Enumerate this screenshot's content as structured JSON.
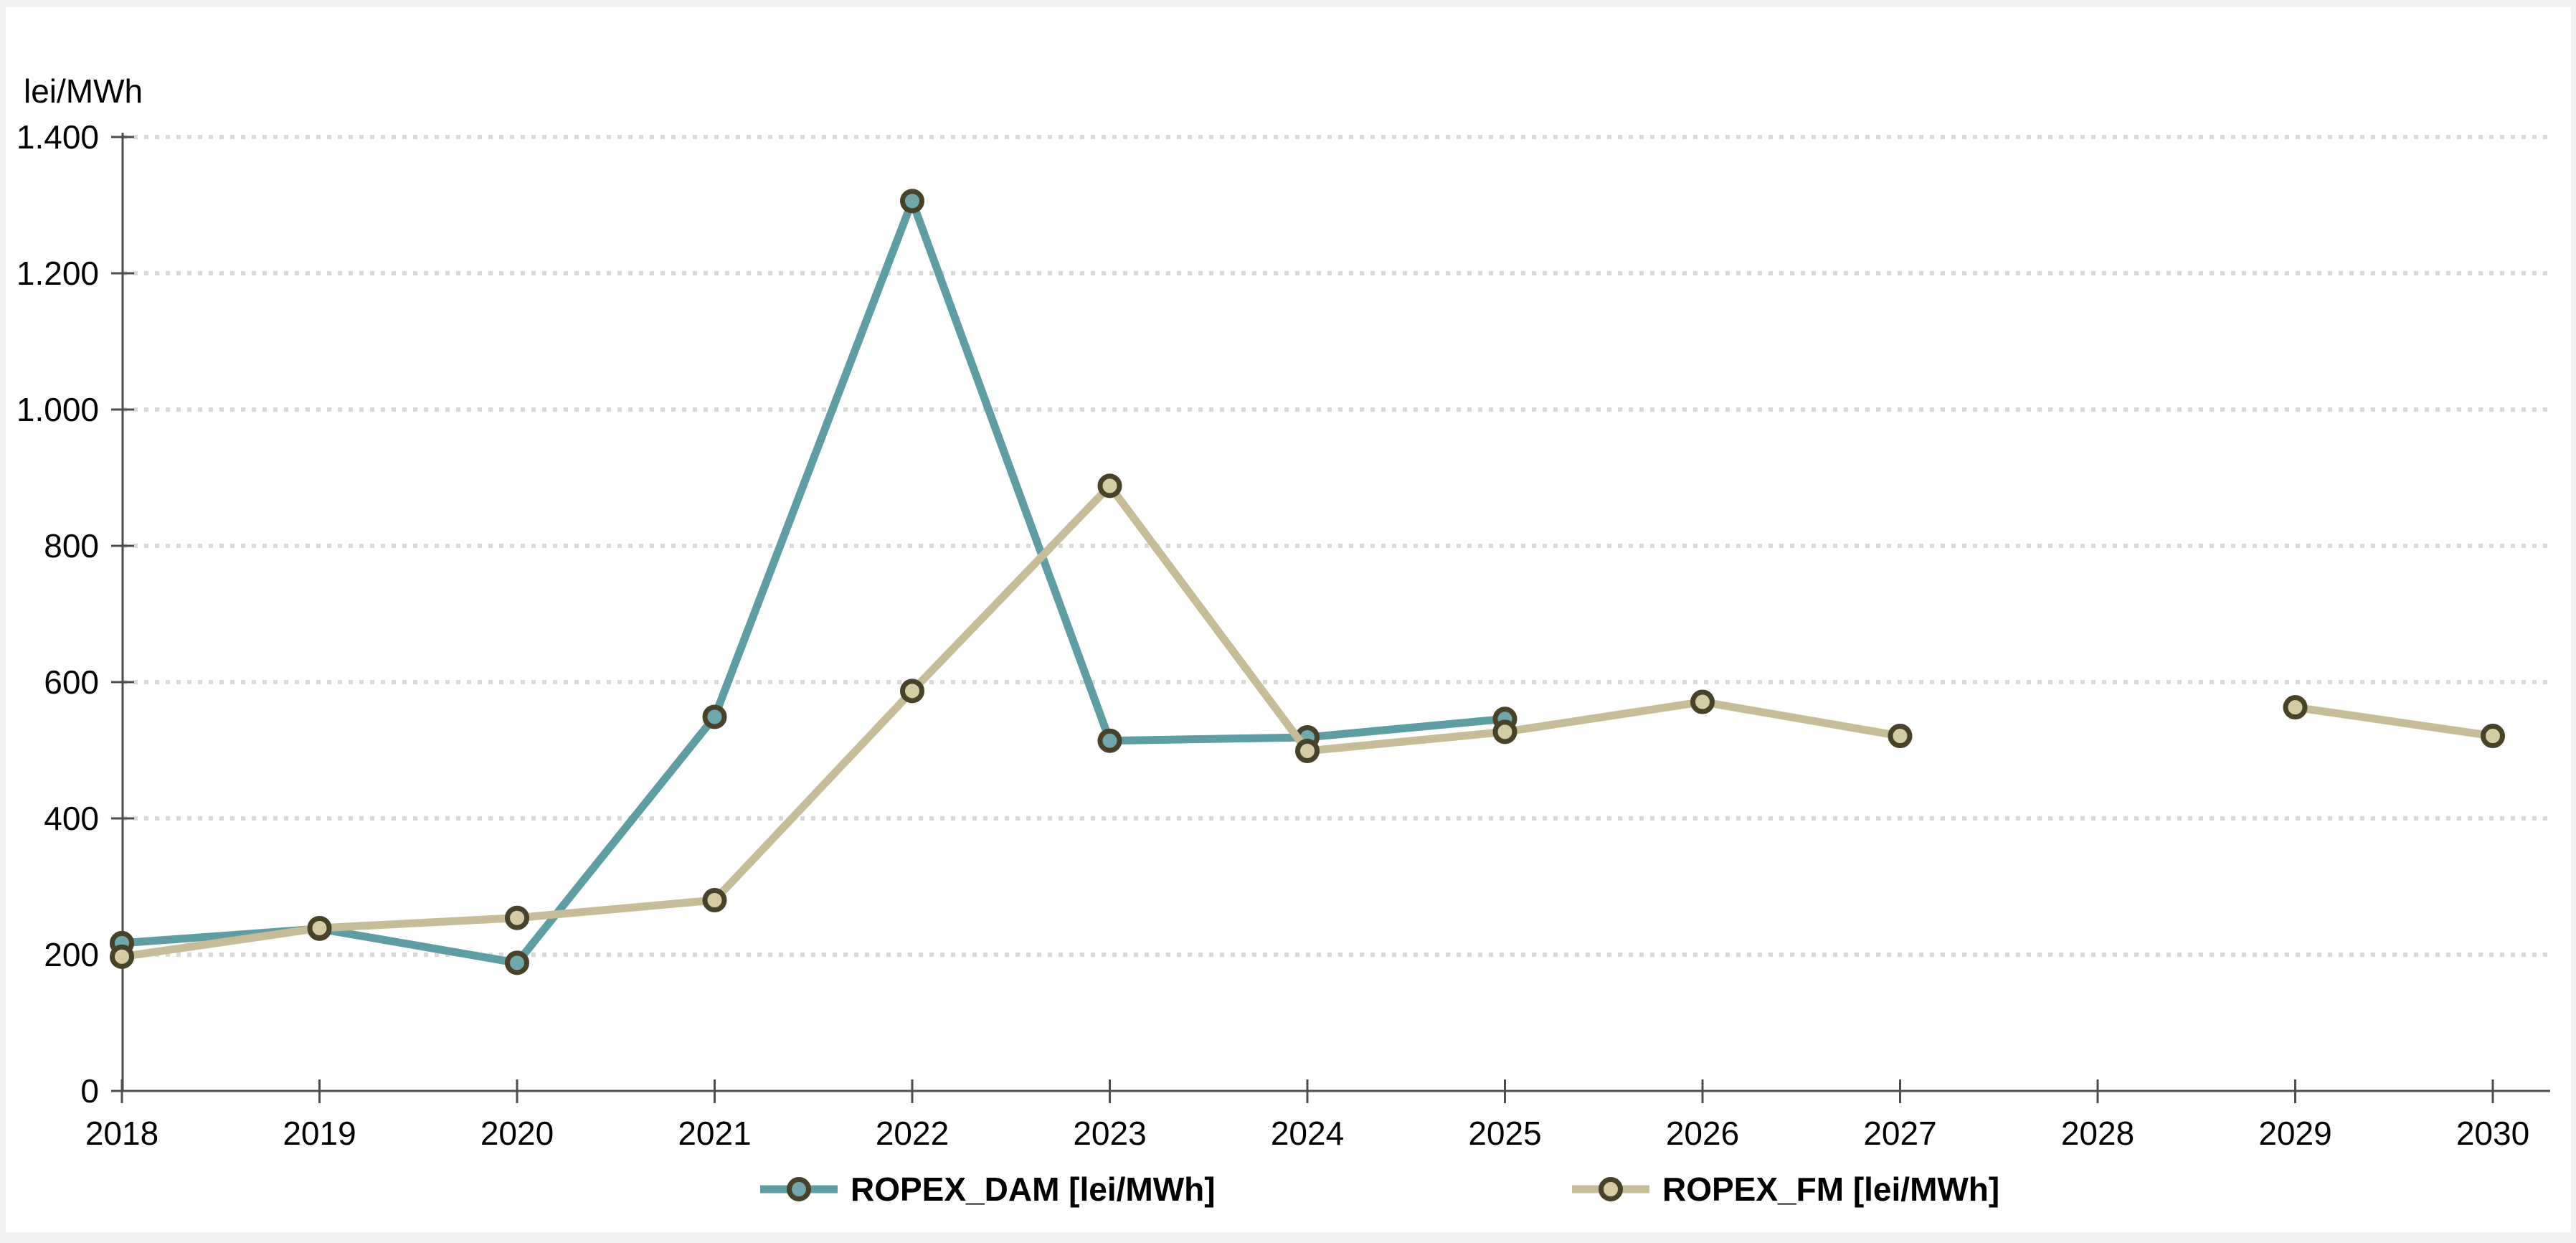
{
  "colors": {
    "frame_bg": "#F2F2F2",
    "plot_bg": "#FFFFFF",
    "grid": "#D9D9D9",
    "axis": "#4D4D4D",
    "text": "#000000",
    "marker_ring": "#474228"
  },
  "chart_data": {
    "type": "line",
    "title": "",
    "ylabel": "lei/MWh",
    "xlabel": "",
    "x": [
      2018,
      2019,
      2020,
      2021,
      2022,
      2023,
      2024,
      2025,
      2026,
      2027,
      2028,
      2029,
      2030
    ],
    "series": [
      {
        "name": "ROPEX_DAM [lei/MWh]",
        "color": "#5C9EA4",
        "marker_fill": "#6FA8AC",
        "values": [
          217,
          238,
          188,
          549,
          1306,
          514,
          519,
          546,
          null,
          null,
          null,
          null,
          null
        ]
      },
      {
        "name": "ROPEX_FM [lei/MWh]",
        "color": "#C6BD96",
        "marker_fill": "#D5CCA3",
        "values": [
          197,
          239,
          254,
          280,
          587,
          888,
          499,
          527,
          571,
          521,
          null,
          563,
          521
        ]
      }
    ],
    "ylim": [
      0,
      1400
    ],
    "ytick_step": 200,
    "ytick_labels": [
      "0",
      "200",
      "400",
      "600",
      "800",
      "1.000",
      "1.200",
      "1.400"
    ],
    "grid": "horizontal-dotted",
    "legend_position": "bottom",
    "marker_shape": "circle"
  }
}
